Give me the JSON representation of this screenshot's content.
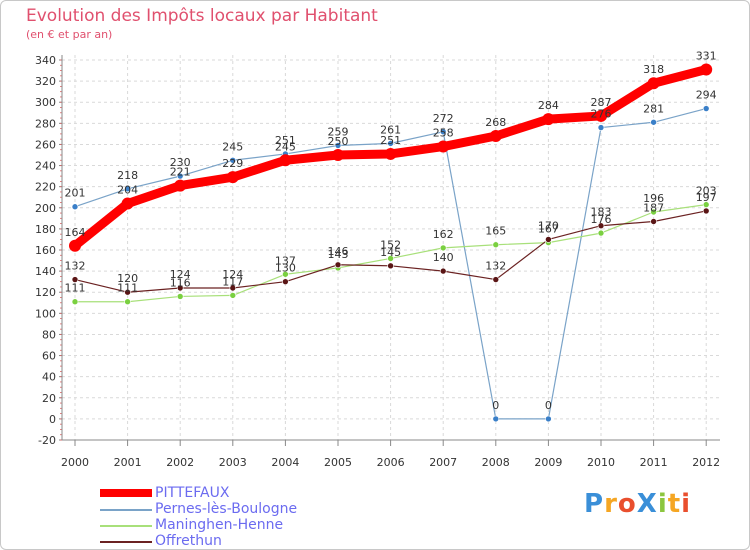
{
  "chart_data": {
    "type": "line",
    "title": "Evolution des Impôts locaux par Habitant",
    "subtitle": "(en € et par an)",
    "xlabel": "",
    "ylabel": "",
    "ylim": [
      -20,
      340
    ],
    "ytick_step": 20,
    "categories": [
      "2000",
      "2001",
      "2002",
      "2003",
      "2004",
      "2005",
      "2006",
      "2007",
      "2008",
      "2009",
      "2010",
      "2011",
      "2012"
    ],
    "series": [
      {
        "name": "PITTEFAUX",
        "color": "#ff0000",
        "values": [
          164,
          204,
          221,
          229,
          245,
          250,
          251,
          258,
          268,
          284,
          287,
          318,
          331
        ]
      },
      {
        "name": "Pernes-lès-Boulogne",
        "color": "#7aa3c8",
        "values": [
          201,
          218,
          230,
          245,
          251,
          259,
          261,
          272,
          0,
          0,
          276,
          281,
          294
        ]
      },
      {
        "name": "Maninghen-Henne",
        "color": "#a8e07a",
        "values": [
          111,
          111,
          116,
          117,
          137,
          143,
          152,
          162,
          165,
          167,
          176,
          196,
          203
        ]
      },
      {
        "name": "Offrethun",
        "color": "#6b2222",
        "values": [
          132,
          120,
          124,
          124,
          130,
          146,
          145,
          140,
          132,
          170,
          183,
          187,
          197
        ]
      }
    ]
  },
  "logo": {
    "text": "ProXiti",
    "letters": [
      "P",
      "r",
      "o",
      "X",
      "i",
      "t",
      "i"
    ],
    "colors": [
      "#3a8fd8",
      "#f5a623",
      "#e94f2e",
      "#3a8fd8",
      "#8cc63f",
      "#f5a623",
      "#e94f2e"
    ]
  }
}
